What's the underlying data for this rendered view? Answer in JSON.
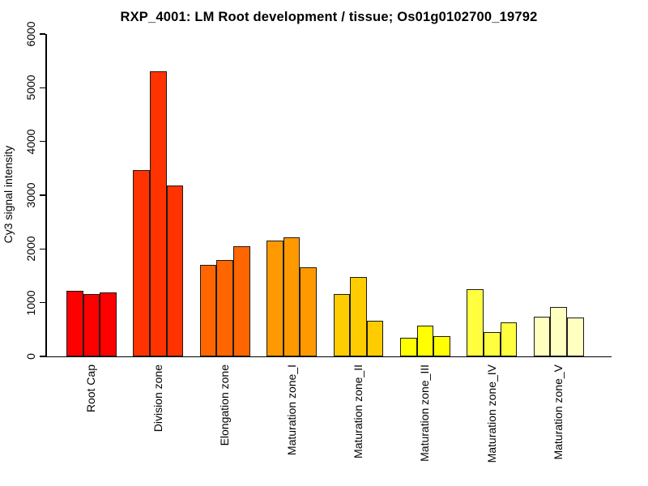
{
  "title": "RXP_4001: LM Root development / tissue; Os01g0102700_19792",
  "chart_data": {
    "type": "bar",
    "title": "RXP_4001: LM Root development / tissue; Os01g0102700_19792",
    "xlabel": "",
    "ylabel": "Cy3 signal intensity",
    "ylim": [
      0,
      6000
    ],
    "yticks": [
      0,
      1000,
      2000,
      3000,
      4000,
      5000,
      6000
    ],
    "grid": false,
    "legend_position": "none",
    "bars_per_group": 3,
    "bar_border_color": "#1a1a1a",
    "axis_color": "#000000",
    "categories": [
      "Root Cap",
      "Division zone",
      "Elongation zone",
      "Maturation zone_I",
      "Maturation zone_II",
      "Maturation zone_III",
      "Maturation zone_IV",
      "Maturation zone_V"
    ],
    "groups": [
      {
        "label": "Root Cap",
        "color": "#FF0000",
        "values": [
          1220,
          1160,
          1195
        ]
      },
      {
        "label": "Division zone",
        "color": "#FF3300",
        "values": [
          3465,
          5310,
          3185
        ]
      },
      {
        "label": "Elongation zone",
        "color": "#FF6600",
        "values": [
          1710,
          1800,
          2050
        ]
      },
      {
        "label": "Maturation zone_I",
        "color": "#FF9900",
        "values": [
          2155,
          2215,
          1665
        ]
      },
      {
        "label": "Maturation zone_II",
        "color": "#FFCC00",
        "values": [
          1160,
          1475,
          670
        ]
      },
      {
        "label": "Maturation zone_III",
        "color": "#FFFF00",
        "values": [
          350,
          570,
          370
        ]
      },
      {
        "label": "Maturation zone_IV",
        "color": "#FFFF40",
        "values": [
          1250,
          445,
          640
        ]
      },
      {
        "label": "Maturation zone_V",
        "color": "#FFFFBF",
        "values": [
          745,
          915,
          720
        ]
      }
    ]
  }
}
